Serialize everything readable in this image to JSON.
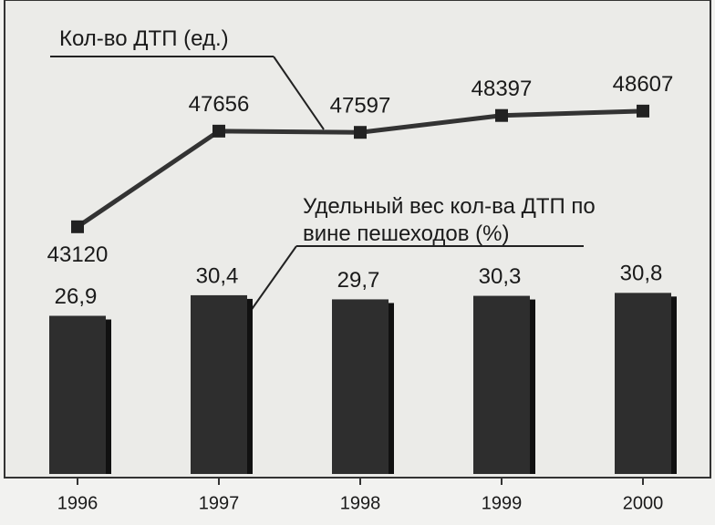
{
  "chart_data": {
    "type": "bar",
    "categories": [
      "1996",
      "1997",
      "1998",
      "1999",
      "2000"
    ],
    "series": [
      {
        "name": "Удельный вес кол-ва ДТП по вине пешеходов (%)",
        "type": "bar",
        "color": "#2e2e2e",
        "values": [
          26.9,
          30.4,
          29.7,
          30.3,
          30.8
        ],
        "value_labels": [
          "26,9",
          "30,4",
          "29,7",
          "30,3",
          "30,8"
        ]
      },
      {
        "name": "Кол-во ДТП (ед.)",
        "type": "line",
        "axis": "y2",
        "color": "#333333",
        "values": [
          43120,
          47656,
          47597,
          48397,
          48607
        ]
      }
    ],
    "ylim": [
      0,
      80
    ],
    "y2lim": [
      31400,
      53700
    ]
  }
}
